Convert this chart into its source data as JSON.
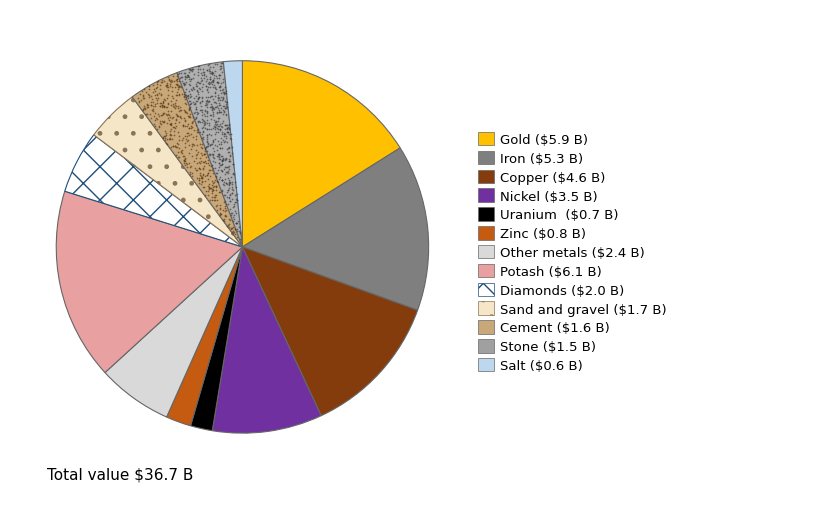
{
  "labels": [
    "Gold ($5.9 B)",
    "Iron ($5.3 B)",
    "Copper ($4.6 B)",
    "Nickel ($3.5 B)",
    "Uranium  ($0.7 B)",
    "Zinc ($0.8 B)",
    "Other metals ($2.4 B)",
    "Potash ($6.1 B)",
    "Diamonds ($2.0 B)",
    "Sand and gravel ($1.7 B)",
    "Cement ($1.6 B)",
    "Stone ($1.5 B)",
    "Salt ($0.6 B)"
  ],
  "values": [
    5.9,
    5.3,
    4.6,
    3.5,
    0.7,
    0.8,
    2.4,
    6.1,
    2.0,
    1.7,
    1.6,
    1.5,
    0.6
  ],
  "colors": [
    "#FFC000",
    "#7F7F7F",
    "#843C0C",
    "#7030A0",
    "#000000",
    "#C55A11",
    "#D9D9D9",
    "#E8A0A0",
    "#FFFFFF",
    "#F5E6C8",
    "#C8A878",
    "#B0B0B0",
    "#BDD7EE"
  ],
  "hatches": [
    "",
    "",
    "",
    "",
    "",
    "",
    "",
    "",
    "x",
    ".",
    "",
    "",
    ""
  ],
  "hatch_edgecolors": [
    "white",
    "white",
    "white",
    "white",
    "white",
    "white",
    "white",
    "white",
    "#1F4E79",
    "#8B7355",
    "white",
    "white",
    "white"
  ],
  "total_text": "Total value $36.7 B",
  "background_color": "#FFFFFF"
}
